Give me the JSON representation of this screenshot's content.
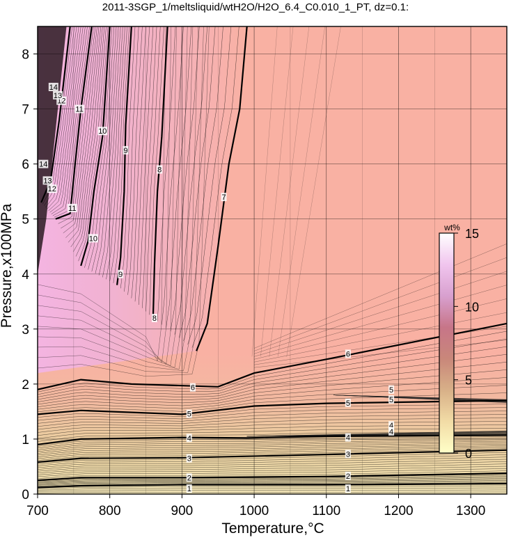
{
  "chart_data": {
    "type": "heatmap",
    "title": "2011-3SGP_1/meltsliquid/wtH2O/H2O_6.4_C0.010_1_PT, dz=0.1:",
    "xlabel": "Temperature,°C",
    "ylabel": "Pressure,x100MPa",
    "xlim": [
      700,
      1350
    ],
    "ylim": [
      0,
      8.5
    ],
    "x_ticks": [
      "700",
      "800",
      "900",
      "1000",
      "1100",
      "1200",
      "1300"
    ],
    "y_ticks": [
      "0",
      "1",
      "2",
      "3",
      "4",
      "5",
      "6",
      "7",
      "8"
    ],
    "grid": true,
    "colorbar": {
      "label": "wt%",
      "placement": "right-inside",
      "range": [
        0,
        15
      ],
      "ticks": [
        "0",
        "5",
        "10",
        "15"
      ],
      "colors": [
        "#ffffc8",
        "#f2dca6",
        "#d8b088",
        "#c9877a",
        "#c77588",
        "#d8a0cf",
        "#f1c5ee",
        "#ffffff"
      ]
    },
    "background_color": "#f9b1a3",
    "major_contours": [
      {
        "label": "1",
        "points": [
          [
            700,
            0.12
          ],
          [
            760,
            0.15
          ],
          [
            900,
            0.17
          ],
          [
            1100,
            0.17
          ],
          [
            1350,
            0.19
          ]
        ]
      },
      {
        "label": "2",
        "points": [
          [
            700,
            0.25
          ],
          [
            760,
            0.3
          ],
          [
            900,
            0.3
          ],
          [
            1100,
            0.32
          ],
          [
            1350,
            0.38
          ]
        ]
      },
      {
        "label": "3",
        "points": [
          [
            700,
            0.58
          ],
          [
            760,
            0.65
          ],
          [
            900,
            0.66
          ],
          [
            1100,
            0.72
          ],
          [
            1350,
            0.8
          ]
        ]
      },
      {
        "label": "4",
        "points": [
          [
            700,
            0.9
          ],
          [
            760,
            1.0
          ],
          [
            900,
            1.03
          ],
          [
            990,
            1.02
          ],
          [
            1100,
            1.05
          ],
          [
            1350,
            1.07
          ]
        ]
      },
      {
        "label": "5",
        "points": [
          [
            700,
            1.45
          ],
          [
            760,
            1.52
          ],
          [
            900,
            1.45
          ],
          [
            1000,
            1.6
          ],
          [
            1100,
            1.65
          ],
          [
            1350,
            1.7
          ]
        ]
      },
      {
        "label": "6",
        "points": [
          [
            700,
            1.9
          ],
          [
            760,
            2.08
          ],
          [
            830,
            2.0
          ],
          [
            950,
            1.95
          ],
          [
            1000,
            2.2
          ],
          [
            1100,
            2.45
          ],
          [
            1350,
            3.1
          ]
        ]
      },
      {
        "label": "7",
        "points": [
          [
            920,
            2.6
          ],
          [
            935,
            3.1
          ],
          [
            950,
            4.5
          ],
          [
            965,
            6.0
          ],
          [
            980,
            7.0
          ],
          [
            990,
            8.5
          ]
        ]
      },
      {
        "label": "8",
        "points": [
          [
            860,
            3.2
          ],
          [
            862,
            4.2
          ],
          [
            866,
            5.5
          ],
          [
            872,
            6.5
          ],
          [
            880,
            8.5
          ]
        ]
      },
      {
        "label": "9",
        "points": [
          [
            810,
            3.8
          ],
          [
            815,
            4.3
          ],
          [
            820,
            5.5
          ],
          [
            822,
            6.7
          ],
          [
            830,
            8.5
          ]
        ]
      },
      {
        "label": "10",
        "points": [
          [
            760,
            4.15
          ],
          [
            770,
            4.6
          ],
          [
            778,
            5.5
          ],
          [
            790,
            6.5
          ],
          [
            800,
            8.5
          ]
        ]
      },
      {
        "label": "11",
        "points": [
          [
            725,
            5.0
          ],
          [
            745,
            5.1
          ],
          [
            752,
            6.0
          ],
          [
            760,
            7.0
          ],
          [
            775,
            8.5
          ]
        ]
      },
      {
        "label": "12",
        "points": [
          [
            705,
            5.3
          ],
          [
            718,
            5.7
          ],
          [
            730,
            6.8
          ],
          [
            745,
            8.5
          ]
        ]
      }
    ],
    "contour_labels": [
      {
        "text": "1",
        "x": 910,
        "y": 0.1
      },
      {
        "text": "1",
        "x": 1130,
        "y": 0.1
      },
      {
        "text": "2",
        "x": 910,
        "y": 0.3
      },
      {
        "text": "2",
        "x": 1130,
        "y": 0.33
      },
      {
        "text": "3",
        "x": 910,
        "y": 0.65
      },
      {
        "text": "3",
        "x": 1130,
        "y": 0.73
      },
      {
        "text": "4",
        "x": 910,
        "y": 1.02
      },
      {
        "text": "4",
        "x": 1130,
        "y": 1.03
      },
      {
        "text": "4",
        "x": 1190,
        "y": 1.25
      },
      {
        "text": "4",
        "x": 1190,
        "y": 1.14
      },
      {
        "text": "5",
        "x": 910,
        "y": 1.46
      },
      {
        "text": "5",
        "x": 1130,
        "y": 1.66
      },
      {
        "text": "5",
        "x": 1190,
        "y": 1.9
      },
      {
        "text": "5",
        "x": 1190,
        "y": 1.72
      },
      {
        "text": "6",
        "x": 915,
        "y": 1.94
      },
      {
        "text": "6",
        "x": 1130,
        "y": 2.55
      },
      {
        "text": "7",
        "x": 958,
        "y": 5.4
      },
      {
        "text": "8",
        "x": 862,
        "y": 3.2
      },
      {
        "text": "8",
        "x": 869,
        "y": 5.9
      },
      {
        "text": "9",
        "x": 815,
        "y": 4.0
      },
      {
        "text": "9",
        "x": 822,
        "y": 6.25
      },
      {
        "text": "10",
        "x": 777,
        "y": 4.65
      },
      {
        "text": "10",
        "x": 790,
        "y": 6.6
      },
      {
        "text": "11",
        "x": 748,
        "y": 5.2
      },
      {
        "text": "11",
        "x": 758,
        "y": 7.0
      },
      {
        "text": "12",
        "x": 720,
        "y": 5.55
      },
      {
        "text": "12",
        "x": 733,
        "y": 7.15
      },
      {
        "text": "13",
        "x": 714,
        "y": 5.7
      },
      {
        "text": "13",
        "x": 728,
        "y": 7.25
      },
      {
        "text": "14",
        "x": 708,
        "y": 6.0
      },
      {
        "text": "14",
        "x": 722,
        "y": 7.4
      }
    ],
    "anomaly_bands": [
      {
        "label": "4",
        "points": [
          [
            990,
            1.05
          ],
          [
            1350,
            1.08
          ]
        ],
        "fan_end": [
          1350,
          1.15
        ]
      },
      {
        "label": "5",
        "points": [
          [
            1110,
            1.8
          ],
          [
            1350,
            1.72
          ]
        ],
        "fan_end": [
          1350,
          1.66
        ]
      }
    ]
  }
}
